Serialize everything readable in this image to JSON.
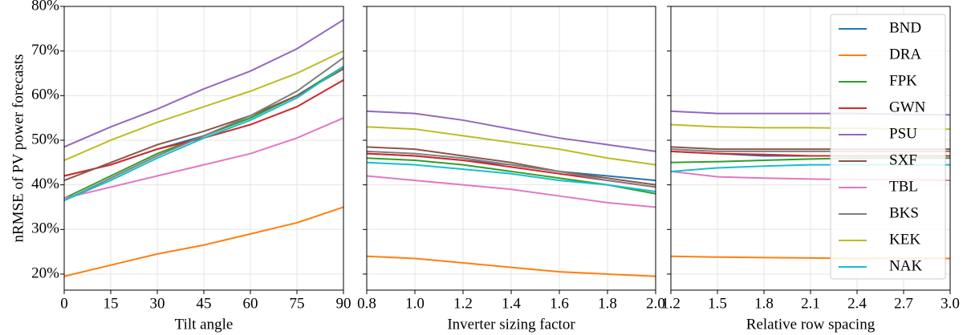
{
  "chart_data": [
    {
      "type": "line",
      "xlabel": "Tilt angle",
      "ylabel": "nRMSE of PV power forecasts",
      "x": [
        0,
        15,
        30,
        45,
        60,
        75,
        90
      ],
      "xlim": [
        0,
        90
      ],
      "xticks": [
        0,
        15,
        30,
        45,
        60,
        75,
        90
      ],
      "ylim": [
        16.4,
        80
      ],
      "yticks": [
        {
          "value": 20,
          "label": "20%"
        },
        {
          "value": 30,
          "label": "30%"
        },
        {
          "value": 40,
          "label": "40%"
        },
        {
          "value": 50,
          "label": "50%"
        },
        {
          "value": 60,
          "label": "60%"
        },
        {
          "value": 70,
          "label": "70%"
        },
        {
          "value": 80,
          "label": "80%"
        }
      ],
      "grid": true,
      "series": [
        {
          "color": "#1f77b4",
          "values": [
            42,
            44.5,
            48,
            51,
            55,
            60,
            66.5
          ]
        },
        {
          "color": "#ff7f0e",
          "values": [
            19.5,
            22,
            24.5,
            26.5,
            29,
            31.5,
            35
          ]
        },
        {
          "color": "#2ca02c",
          "values": [
            37,
            42,
            47,
            51,
            55,
            60,
            66.5
          ]
        },
        {
          "color": "#d62728",
          "values": [
            42,
            44.5,
            48,
            50.5,
            53.5,
            57.5,
            63.5
          ]
        },
        {
          "color": "#9467bd",
          "values": [
            48.5,
            53,
            57,
            61.5,
            65.5,
            70.5,
            77
          ]
        },
        {
          "color": "#8c564b",
          "values": [
            41,
            45,
            49,
            52,
            55.5,
            60,
            66
          ]
        },
        {
          "color": "#e377c2",
          "values": [
            37,
            39.5,
            42,
            44.5,
            47,
            50.5,
            55
          ]
        },
        {
          "color": "#7f7f7f",
          "values": [
            36.5,
            41.5,
            46.5,
            51,
            55.5,
            61,
            68.5
          ]
        },
        {
          "color": "#bcbd22",
          "values": [
            45.5,
            50,
            54,
            57.5,
            61,
            65,
            70
          ]
        },
        {
          "color": "#17becf",
          "values": [
            36.5,
            41,
            46,
            50.5,
            54.5,
            59.5,
            66.5
          ]
        }
      ]
    },
    {
      "type": "line",
      "xlabel": "Inverter sizing factor",
      "x": [
        0.8,
        1.0,
        1.2,
        1.4,
        1.6,
        1.8,
        2.0
      ],
      "xlim": [
        0.8,
        2.0
      ],
      "xticks": [
        0.8,
        {
          "value": 1,
          "label": "1.0"
        },
        1.2,
        1.4,
        1.6,
        1.8,
        {
          "value": 2,
          "label": "2.0"
        }
      ],
      "ylim": [
        16.4,
        80
      ],
      "yticks": [
        20,
        30,
        40,
        50,
        60,
        70,
        80
      ],
      "grid": true,
      "series": [
        {
          "color": "#1f77b4",
          "values": [
            47,
            46.5,
            45.5,
            44.5,
            43,
            42,
            41
          ]
        },
        {
          "color": "#ff7f0e",
          "values": [
            24,
            23.5,
            22.5,
            21.5,
            20.5,
            20,
            19.5
          ]
        },
        {
          "color": "#2ca02c",
          "values": [
            46,
            45.5,
            44.5,
            43,
            41.5,
            40,
            38
          ]
        },
        {
          "color": "#d62728",
          "values": [
            47,
            46.5,
            45.5,
            44,
            42.5,
            41,
            39.5
          ]
        },
        {
          "color": "#9467bd",
          "values": [
            56.5,
            56,
            54.5,
            52.5,
            50.5,
            49,
            47.5
          ]
        },
        {
          "color": "#8c564b",
          "values": [
            48.5,
            48,
            46.5,
            45,
            43,
            41.5,
            40
          ]
        },
        {
          "color": "#e377c2",
          "values": [
            42,
            41,
            40,
            39,
            37.5,
            36,
            35
          ]
        },
        {
          "color": "#7f7f7f",
          "values": [
            47.5,
            47,
            46,
            44.5,
            43,
            41,
            39.5
          ]
        },
        {
          "color": "#bcbd22",
          "values": [
            53,
            52.5,
            51,
            49.5,
            48,
            46,
            44.5
          ]
        },
        {
          "color": "#17becf",
          "values": [
            45,
            44.5,
            43.5,
            42.5,
            41,
            40,
            38.5
          ]
        }
      ]
    },
    {
      "type": "line",
      "xlabel": "Relative row spacing",
      "x": [
        1.2,
        1.5,
        1.8,
        2.1,
        2.4,
        2.7,
        3.0
      ],
      "xlim": [
        1.2,
        3.0
      ],
      "xticks": [
        1.2,
        1.5,
        1.8,
        2.1,
        2.4,
        2.7,
        {
          "value": 3,
          "label": "3.0"
        }
      ],
      "ylim": [
        16.4,
        80
      ],
      "yticks": [
        20,
        30,
        40,
        50,
        60,
        70,
        80
      ],
      "grid": true,
      "legend": "upper right",
      "series": [
        {
          "name": "BND",
          "color": "#1f77b4",
          "values": [
            47.5,
            47,
            46.5,
            46.5,
            46.5,
            46.5,
            46.5
          ]
        },
        {
          "name": "DRA",
          "color": "#ff7f0e",
          "values": [
            24,
            23.8,
            23.7,
            23.6,
            23.5,
            23.5,
            23.5
          ]
        },
        {
          "name": "FPK",
          "color": "#2ca02c",
          "values": [
            45,
            45.2,
            45.5,
            45.8,
            46,
            46,
            46
          ]
        },
        {
          "name": "GWN",
          "color": "#d62728",
          "values": [
            47.5,
            47,
            46.8,
            46.5,
            46.5,
            46.5,
            46.5
          ]
        },
        {
          "name": "PSU",
          "color": "#9467bd",
          "values": [
            56.5,
            56,
            56,
            56,
            56,
            55.8,
            55.7
          ]
        },
        {
          "name": "SXF",
          "color": "#8c564b",
          "values": [
            48.5,
            48,
            48,
            48,
            48,
            48,
            48
          ]
        },
        {
          "name": "TBL",
          "color": "#e377c2",
          "values": [
            43,
            41.8,
            41.5,
            41.3,
            41.2,
            41.2,
            41
          ]
        },
        {
          "name": "BKS",
          "color": "#7f7f7f",
          "values": [
            48,
            47.5,
            47.5,
            47.5,
            47.5,
            47.5,
            47.5
          ]
        },
        {
          "name": "KEK",
          "color": "#bcbd22",
          "values": [
            53.5,
            53,
            52.8,
            52.8,
            52.7,
            52.5,
            52.5
          ]
        },
        {
          "name": "NAK",
          "color": "#17becf",
          "values": [
            43,
            43.8,
            44.2,
            44.5,
            44.5,
            44.5,
            44.5
          ]
        }
      ]
    }
  ]
}
